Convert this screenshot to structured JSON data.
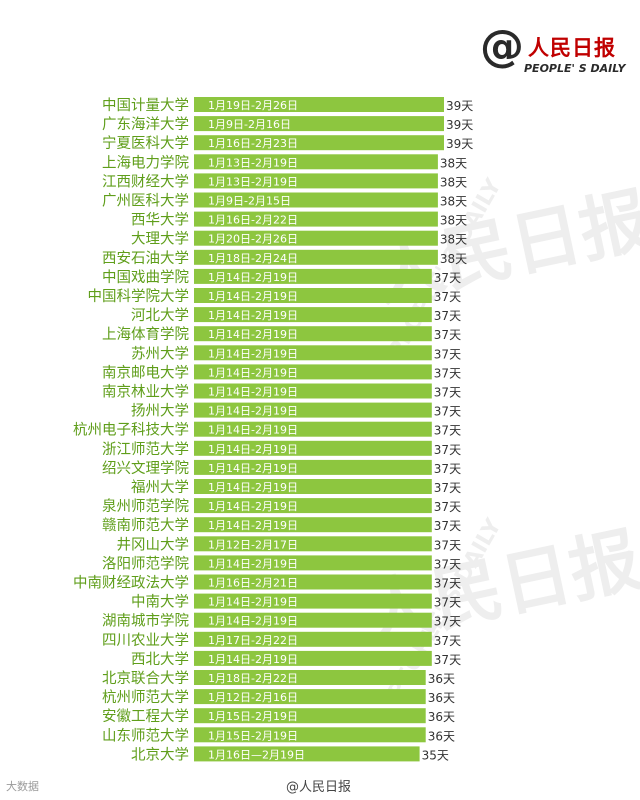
{
  "brand": {
    "cn": "人民日报",
    "en": "PEOPLE' S DAILY",
    "watermark_cn": "人民日报",
    "watermark_en": "PEOPLE' S DAILY"
  },
  "footer": {
    "left": "大数据",
    "center": "@人民日报"
  },
  "colors": {
    "bar": "#8dc63f",
    "label": "#5f9e1a"
  },
  "chart_data": {
    "type": "bar",
    "orientation": "horizontal",
    "value_unit": "天",
    "xlim": [
      0,
      39
    ],
    "grid": false,
    "categories": [
      "中国计量大学",
      "广东海洋大学",
      "宁夏医科大学",
      "上海电力学院",
      "江西财经大学",
      "广州医科大学",
      "西华大学",
      "大理大学",
      "西安石油大学",
      "中国戏曲学院",
      "中国科学院大学",
      "河北大学",
      "上海体育学院",
      "苏州大学",
      "南京邮电大学",
      "南京林业大学",
      "扬州大学",
      "杭州电子科技大学",
      "浙江师范大学",
      "绍兴文理学院",
      "福州大学",
      "泉州师范学院",
      "赣南师范大学",
      "井冈山大学",
      "洛阳师范学院",
      "中南财经政法大学",
      "中南大学",
      "湖南城市学院",
      "四川农业大学",
      "西北大学",
      "北京联合大学",
      "杭州师范大学",
      "安徽工程大学",
      "山东师范大学",
      "北京大学"
    ],
    "values": [
      39,
      39,
      39,
      38,
      38,
      38,
      38,
      38,
      38,
      37,
      37,
      37,
      37,
      37,
      37,
      37,
      37,
      37,
      37,
      37,
      37,
      37,
      37,
      37,
      37,
      37,
      37,
      37,
      37,
      37,
      36,
      36,
      36,
      36,
      35
    ],
    "date_ranges": [
      "1月19日-2月26日",
      "1月9日-2月16日",
      "1月16日-2月23日",
      "1月13日-2月19日",
      "1月13日-2月19日",
      "1月9日-2月15日",
      "1月16日-2月22日",
      "1月20日-2月26日",
      "1月18日-2月24日",
      "1月14日-2月19日",
      "1月14日-2月19日",
      "1月14日-2月19日",
      "1月14日-2月19日",
      "1月14日-2月19日",
      "1月14日-2月19日",
      "1月14日-2月19日",
      "1月14日-2月19日",
      "1月14日-2月19日",
      "1月14日-2月19日",
      "1月14日-2月19日",
      "1月14日-2月19日",
      "1月14日-2月19日",
      "1月14日-2月19日",
      "1月12日-2月17日",
      "1月14日-2月19日",
      "1月16日-2月21日",
      "1月14日-2月19日",
      "1月14日-2月19日",
      "1月17日-2月22日",
      "1月14日-2月19日",
      "1月18日-2月22日",
      "1月12日-2月16日",
      "1月15日-2月19日",
      "1月15日-2月19日",
      "1月16日—2月19日"
    ]
  }
}
